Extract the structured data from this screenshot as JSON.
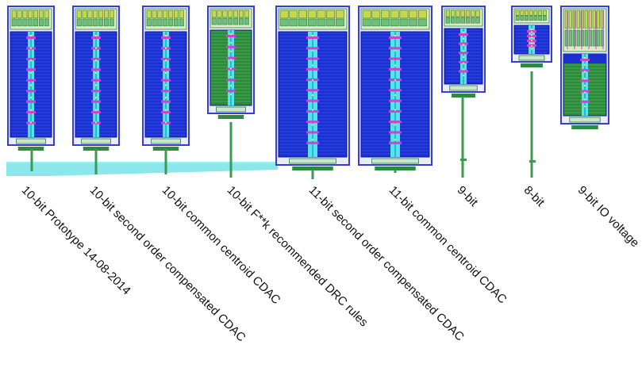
{
  "labels": [
    "10-bit Prototype 14-08-2014",
    "10-bit second order compensated CDAC",
    "10-bit common centroid CDAC",
    "10-bit F**k recommended DRC rules",
    "11-bit second order compensated CDAC",
    "11-bit common centroid CDAC",
    "9-bit",
    "8-bit",
    "9-bit IO voltage"
  ],
  "colors": {
    "border": "#3b3bd6",
    "array_fill": "#1a2fd0",
    "green_array": "#2a8a3a",
    "spine": "#4fe6ee",
    "magenta": "#d040d8",
    "pad": "#2e8b3e",
    "bus": "#7ee4ea",
    "wire": "#3d9a52",
    "logic": "#c8d84a"
  },
  "layouts": [
    {
      "array": "blue",
      "logic": "normal"
    },
    {
      "array": "blue",
      "logic": "normal"
    },
    {
      "array": "blue",
      "logic": "normal"
    },
    {
      "array": "green",
      "logic": "normal"
    },
    {
      "array": "blue-wide",
      "logic": "normal"
    },
    {
      "array": "blue-wide",
      "logic": "normal"
    },
    {
      "array": "blue",
      "logic": "normal"
    },
    {
      "array": "blue",
      "logic": "normal"
    },
    {
      "array": "green-io",
      "logic": "dense"
    }
  ]
}
